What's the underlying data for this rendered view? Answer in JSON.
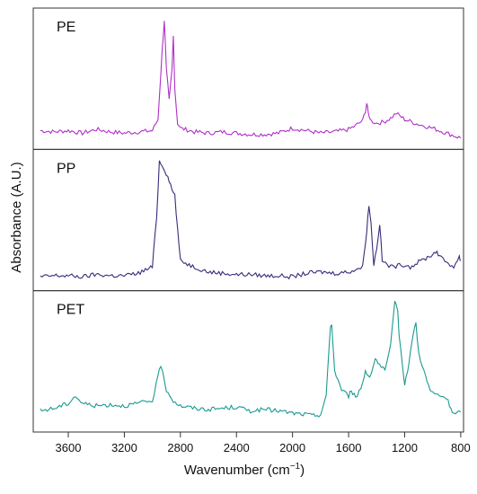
{
  "chart_data": {
    "type": "line",
    "xlabel": "Wavenumber (cm",
    "xlabel_sup": "−1",
    "xlabel_end": ")",
    "ylabel": "Absorbance (A.U.)",
    "xlim": [
      3850,
      780
    ],
    "x_reversed": true,
    "x_ticks": [
      3600,
      3200,
      2800,
      2400,
      2000,
      1600,
      1200,
      800
    ],
    "y_tick_labels": false,
    "grid": false,
    "panels": [
      {
        "label": "PE",
        "color": "#b030c8",
        "ylim": [
          0,
          1
        ],
        "x": [
          3800,
          3700,
          3600,
          3500,
          3400,
          3300,
          3200,
          3100,
          3000,
          2960,
          2930,
          2915,
          2900,
          2880,
          2860,
          2850,
          2840,
          2820,
          2800,
          2700,
          2600,
          2500,
          2400,
          2300,
          2200,
          2100,
          2000,
          1900,
          1800,
          1700,
          1600,
          1550,
          1500,
          1480,
          1470,
          1460,
          1440,
          1400,
          1350,
          1300,
          1260,
          1200,
          1100,
          1000,
          900,
          850,
          800
        ],
        "y": [
          0.06,
          0.05,
          0.06,
          0.04,
          0.07,
          0.05,
          0.04,
          0.05,
          0.06,
          0.15,
          0.7,
          0.95,
          0.55,
          0.3,
          0.55,
          0.82,
          0.4,
          0.12,
          0.08,
          0.05,
          0.04,
          0.05,
          0.04,
          0.03,
          0.03,
          0.04,
          0.08,
          0.06,
          0.04,
          0.05,
          0.07,
          0.1,
          0.14,
          0.22,
          0.28,
          0.2,
          0.14,
          0.12,
          0.13,
          0.16,
          0.2,
          0.15,
          0.11,
          0.08,
          0.04,
          0.02,
          0.0
        ]
      },
      {
        "label": "PP",
        "color": "#3a2a7a",
        "ylim": [
          0,
          1
        ],
        "x": [
          3800,
          3700,
          3600,
          3500,
          3400,
          3300,
          3200,
          3100,
          3000,
          2970,
          2950,
          2920,
          2900,
          2880,
          2860,
          2840,
          2820,
          2800,
          2700,
          2600,
          2500,
          2400,
          2300,
          2200,
          2100,
          2000,
          1900,
          1800,
          1700,
          1600,
          1500,
          1470,
          1455,
          1440,
          1420,
          1400,
          1378,
          1360,
          1300,
          1200,
          1160,
          1100,
          1000,
          970,
          950,
          900,
          850,
          810,
          800
        ],
        "y": [
          0.02,
          0.03,
          0.03,
          0.02,
          0.04,
          0.03,
          0.03,
          0.05,
          0.1,
          0.5,
          0.95,
          0.9,
          0.85,
          0.8,
          0.72,
          0.68,
          0.4,
          0.15,
          0.1,
          0.06,
          0.05,
          0.04,
          0.04,
          0.03,
          0.03,
          0.02,
          0.05,
          0.06,
          0.05,
          0.06,
          0.1,
          0.4,
          0.6,
          0.45,
          0.12,
          0.25,
          0.45,
          0.15,
          0.1,
          0.12,
          0.1,
          0.14,
          0.2,
          0.23,
          0.18,
          0.14,
          0.1,
          0.18,
          0.15
        ]
      },
      {
        "label": "PET",
        "color": "#1a9a92",
        "ylim": [
          0,
          1
        ],
        "x": [
          3800,
          3700,
          3600,
          3550,
          3500,
          3400,
          3300,
          3200,
          3100,
          3000,
          2960,
          2940,
          2900,
          2850,
          2800,
          2700,
          2600,
          2500,
          2400,
          2300,
          2200,
          2100,
          2000,
          1900,
          1850,
          1800,
          1760,
          1730,
          1720,
          1700,
          1650,
          1600,
          1580,
          1550,
          1500,
          1480,
          1450,
          1410,
          1380,
          1340,
          1300,
          1270,
          1250,
          1240,
          1200,
          1170,
          1140,
          1120,
          1100,
          1050,
          1020,
          1000,
          950,
          900,
          870,
          850,
          800
        ],
        "y": [
          0.08,
          0.1,
          0.14,
          0.2,
          0.14,
          0.12,
          0.13,
          0.12,
          0.14,
          0.16,
          0.35,
          0.45,
          0.25,
          0.16,
          0.12,
          0.1,
          0.09,
          0.1,
          0.11,
          0.08,
          0.09,
          0.08,
          0.06,
          0.05,
          0.04,
          0.05,
          0.2,
          0.75,
          0.78,
          0.4,
          0.25,
          0.2,
          0.25,
          0.18,
          0.3,
          0.4,
          0.35,
          0.5,
          0.45,
          0.4,
          0.6,
          0.95,
          0.9,
          0.7,
          0.3,
          0.45,
          0.7,
          0.78,
          0.55,
          0.35,
          0.25,
          0.22,
          0.2,
          0.18,
          0.1,
          0.05,
          0.07
        ]
      }
    ]
  }
}
